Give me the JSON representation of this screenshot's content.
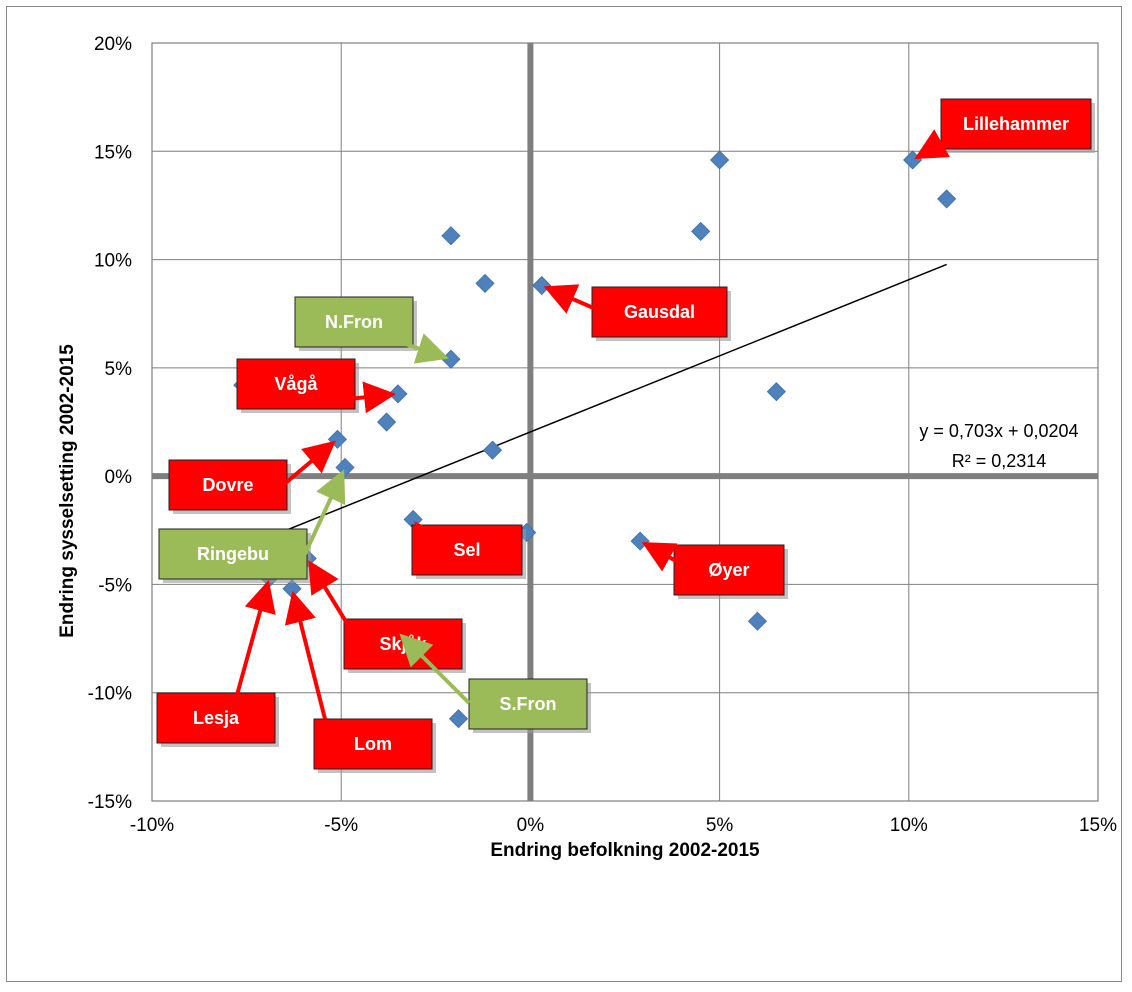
{
  "chart_data": {
    "type": "scatter",
    "xlabel": "Endring befolkning 2002-2015",
    "ylabel": "Endring sysselsetting 2002-2015",
    "xlim": [
      -0.1,
      0.15
    ],
    "ylim": [
      -0.15,
      0.2
    ],
    "x_ticks": [
      -0.1,
      -0.05,
      0.0,
      0.05,
      0.1,
      0.15
    ],
    "y_ticks": [
      -0.15,
      -0.1,
      -0.05,
      0.0,
      0.05,
      0.1,
      0.15,
      0.2
    ],
    "x_tick_labels": [
      "-10%",
      "-5%",
      "0%",
      "5%",
      "10%",
      "15%"
    ],
    "y_tick_labels": [
      "-15%",
      "-10%",
      "-5%",
      "0%",
      "5%",
      "10%",
      "15%",
      "20%"
    ],
    "grid": true,
    "marker_color": "#4F81BD",
    "points": [
      {
        "x": 0.101,
        "y": 0.146
      },
      {
        "x": 0.11,
        "y": 0.128
      },
      {
        "x": 0.05,
        "y": 0.146
      },
      {
        "x": 0.045,
        "y": 0.113
      },
      {
        "x": 0.003,
        "y": 0.088
      },
      {
        "x": -0.021,
        "y": 0.111
      },
      {
        "x": -0.012,
        "y": 0.089
      },
      {
        "x": -0.021,
        "y": 0.054
      },
      {
        "x": -0.035,
        "y": 0.038
      },
      {
        "x": -0.076,
        "y": 0.042
      },
      {
        "x": -0.038,
        "y": 0.025
      },
      {
        "x": -0.051,
        "y": 0.017
      },
      {
        "x": -0.049,
        "y": 0.004
      },
      {
        "x": -0.01,
        "y": 0.012
      },
      {
        "x": -0.031,
        "y": -0.02
      },
      {
        "x": -0.001,
        "y": -0.026
      },
      {
        "x": 0.029,
        "y": -0.03
      },
      {
        "x": 0.065,
        "y": 0.039
      },
      {
        "x": 0.045,
        "y": -0.04
      },
      {
        "x": 0.06,
        "y": -0.067
      },
      {
        "x": -0.059,
        "y": -0.038
      },
      {
        "x": -0.069,
        "y": -0.047
      },
      {
        "x": -0.063,
        "y": -0.052
      },
      {
        "x": -0.035,
        "y": -0.072
      },
      {
        "x": -0.019,
        "y": -0.112
      },
      {
        "x": -0.051,
        "y": -0.123
      }
    ],
    "trendline": {
      "equation": "y = 0,703x + 0,0204",
      "r2": "R² = 0,2314",
      "slope": 0.703,
      "intercept": 0.0204,
      "x_range": [
        -0.076,
        0.11
      ]
    },
    "annotations": [
      {
        "label": "Lillehammer",
        "color": "red",
        "target": [
          0.101,
          0.146
        ]
      },
      {
        "label": "Gausdal",
        "color": "red",
        "target": [
          0.003,
          0.088
        ]
      },
      {
        "label": "N.Fron",
        "color": "green",
        "target": [
          -0.021,
          0.054
        ]
      },
      {
        "label": "Vågå",
        "color": "red",
        "target": [
          -0.035,
          0.038
        ]
      },
      {
        "label": "Dovre",
        "color": "red",
        "target": [
          -0.051,
          0.017
        ]
      },
      {
        "label": "Ringebu",
        "color": "green",
        "target": [
          -0.049,
          0.004
        ]
      },
      {
        "label": "Sel",
        "color": "red",
        "target": [
          -0.031,
          -0.02
        ]
      },
      {
        "label": "Øyer",
        "color": "red",
        "target": [
          0.029,
          -0.03
        ]
      },
      {
        "label": "Skjåk",
        "color": "red",
        "target": [
          -0.059,
          -0.038
        ]
      },
      {
        "label": "S.Fron",
        "color": "green",
        "target": [
          -0.035,
          -0.072
        ]
      },
      {
        "label": "Lesja",
        "color": "red",
        "target": [
          -0.069,
          -0.047
        ]
      },
      {
        "label": "Lom",
        "color": "red",
        "target": [
          -0.063,
          -0.052
        ]
      }
    ],
    "colors": {
      "red": "#FF0000",
      "green": "#9BBB59",
      "grid": "#7F7F7F",
      "zero_axis": "#7F7F7F",
      "trendline": "#000000"
    }
  }
}
